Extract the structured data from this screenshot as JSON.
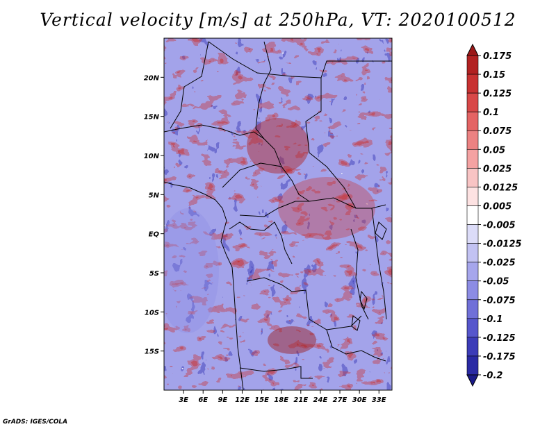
{
  "title": "Vertical velocity [m/s] at 250hPa, VT: 2020100512",
  "credit": "GrADS: IGES/COLA",
  "map": {
    "lon_range": [
      0,
      35
    ],
    "lat_range": [
      -20,
      25
    ],
    "lat_ticks": [
      {
        "lat": 20,
        "label": "20N"
      },
      {
        "lat": 15,
        "label": "15N"
      },
      {
        "lat": 10,
        "label": "10N"
      },
      {
        "lat": 5,
        "label": "5N"
      },
      {
        "lat": 0,
        "label": "EQ"
      },
      {
        "lat": -5,
        "label": "5S"
      },
      {
        "lat": -10,
        "label": "10S"
      },
      {
        "lat": -15,
        "label": "15S"
      }
    ],
    "lon_ticks": [
      {
        "lon": 3,
        "label": "3E"
      },
      {
        "lon": 6,
        "label": "6E"
      },
      {
        "lon": 9,
        "label": "9E"
      },
      {
        "lon": 12,
        "label": "12E"
      },
      {
        "lon": 15,
        "label": "15E"
      },
      {
        "lon": 18,
        "label": "18E"
      },
      {
        "lon": 21,
        "label": "21E"
      },
      {
        "lon": 24,
        "label": "24E"
      },
      {
        "lon": 27,
        "label": "27E"
      },
      {
        "lon": 30,
        "label": "30E"
      },
      {
        "lon": 33,
        "label": "33E"
      }
    ]
  },
  "colorbar": {
    "levels": [
      "0.175",
      "0.15",
      "0.125",
      "0.1",
      "0.075",
      "0.05",
      "0.025",
      "0.0125",
      "0.005",
      "-0.005",
      "-0.0125",
      "-0.025",
      "-0.05",
      "-0.075",
      "-0.1",
      "-0.125",
      "-0.175",
      "-0.2"
    ],
    "colors": [
      "#9b1818",
      "#b22222",
      "#c83232",
      "#d84848",
      "#e46464",
      "#ec8282",
      "#f4a2a2",
      "#f8c4c4",
      "#fde2e2",
      "#ffffff",
      "#dcdcf8",
      "#c2c2f2",
      "#a6a6ec",
      "#8c8ce4",
      "#7070d8",
      "#5656cc",
      "#3c3cb8",
      "#2a2aa4",
      "#1a1a88"
    ]
  }
}
